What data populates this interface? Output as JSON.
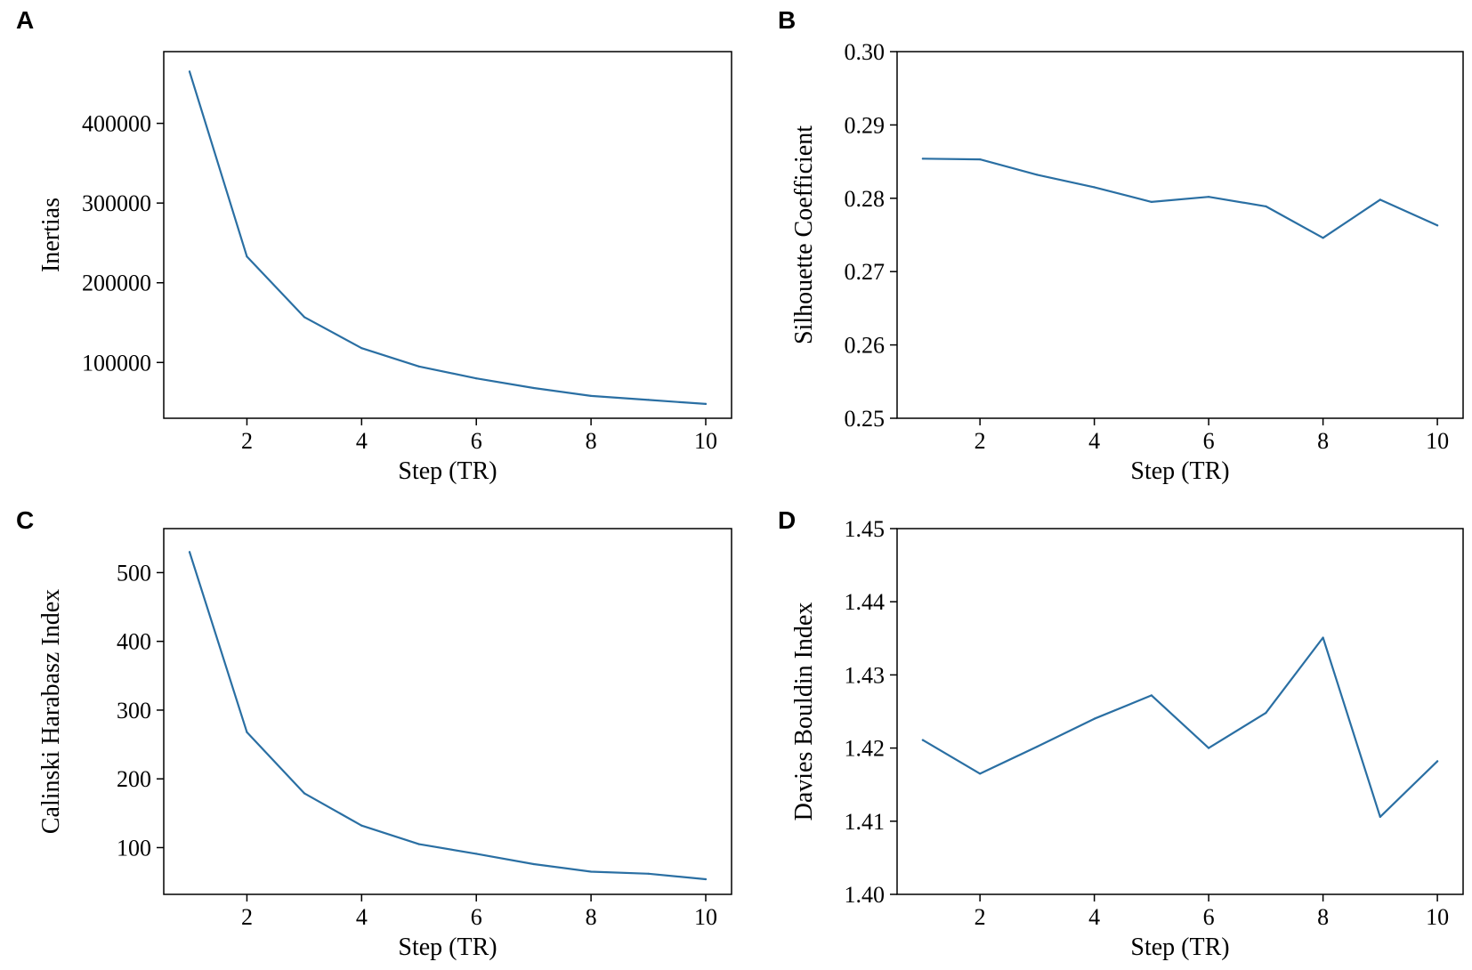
{
  "colors": {
    "series": "#2a6fa3",
    "axis": "#000000"
  },
  "chart_data": [
    {
      "panel": "A",
      "type": "line",
      "title": "",
      "xlabel": "Step (TR)",
      "ylabel": "Inertias",
      "xlim": [
        0.55,
        10.45
      ],
      "ylim": [
        30000,
        490000
      ],
      "xticks": [
        2,
        4,
        6,
        8,
        10
      ],
      "yticks": [
        100000,
        200000,
        300000,
        400000
      ],
      "xtick_labels": [
        "2",
        "4",
        "6",
        "8",
        "10"
      ],
      "ytick_labels": [
        "100000",
        "200000",
        "300000",
        "400000"
      ],
      "grid": false,
      "series": [
        {
          "name": "Inertias",
          "x": [
            1,
            2,
            3,
            4,
            5,
            6,
            7,
            8,
            9,
            10
          ],
          "values": [
            465000,
            233000,
            157000,
            118000,
            95000,
            80000,
            68000,
            58000,
            53000,
            48000
          ]
        }
      ]
    },
    {
      "panel": "B",
      "type": "line",
      "title": "",
      "xlabel": "Step (TR)",
      "ylabel": "Silhouette Coefficient",
      "xlim": [
        0.55,
        10.45
      ],
      "ylim": [
        0.25,
        0.3
      ],
      "xticks": [
        2,
        4,
        6,
        8,
        10
      ],
      "yticks": [
        0.25,
        0.26,
        0.27,
        0.28,
        0.29,
        0.3
      ],
      "xtick_labels": [
        "2",
        "4",
        "6",
        "8",
        "10"
      ],
      "ytick_labels": [
        "0.25",
        "0.26",
        "0.27",
        "0.28",
        "0.29",
        "0.30"
      ],
      "grid": false,
      "series": [
        {
          "name": "Silhouette Coefficient",
          "x": [
            1,
            2,
            3,
            4,
            5,
            6,
            7,
            8,
            9,
            10
          ],
          "values": [
            0.2854,
            0.2853,
            0.2832,
            0.2815,
            0.2795,
            0.2802,
            0.2789,
            0.2746,
            0.2798,
            0.2763
          ]
        }
      ]
    },
    {
      "panel": "C",
      "type": "line",
      "title": "",
      "xlabel": "Step (TR)",
      "ylabel": "Calinski Harabasz Index",
      "xlim": [
        0.55,
        10.45
      ],
      "ylim": [
        32,
        564
      ],
      "xticks": [
        2,
        4,
        6,
        8,
        10
      ],
      "yticks": [
        100,
        200,
        300,
        400,
        500
      ],
      "xtick_labels": [
        "2",
        "4",
        "6",
        "8",
        "10"
      ],
      "ytick_labels": [
        "100",
        "200",
        "300",
        "400",
        "500"
      ],
      "grid": false,
      "series": [
        {
          "name": "Calinski Harabasz Index",
          "x": [
            1,
            2,
            3,
            4,
            5,
            6,
            7,
            8,
            9,
            10
          ],
          "values": [
            530,
            268,
            179,
            132,
            105,
            91,
            76,
            65,
            62,
            54
          ]
        }
      ]
    },
    {
      "panel": "D",
      "type": "line",
      "title": "",
      "xlabel": "Step (TR)",
      "ylabel": "Davies Bouldin Index",
      "xlim": [
        0.55,
        10.45
      ],
      "ylim": [
        1.4,
        1.45
      ],
      "xticks": [
        2,
        4,
        6,
        8,
        10
      ],
      "yticks": [
        1.4,
        1.41,
        1.42,
        1.43,
        1.44,
        1.45
      ],
      "xtick_labels": [
        "2",
        "4",
        "6",
        "8",
        "10"
      ],
      "ytick_labels": [
        "1.40",
        "1.41",
        "1.42",
        "1.43",
        "1.44",
        "1.45"
      ],
      "grid": false,
      "series": [
        {
          "name": "Davies Bouldin Index",
          "x": [
            1,
            2,
            3,
            4,
            5,
            6,
            7,
            8,
            9,
            10
          ],
          "values": [
            1.4211,
            1.4165,
            1.4202,
            1.424,
            1.4272,
            1.42,
            1.4248,
            1.4351,
            1.4106,
            1.4182
          ]
        }
      ]
    }
  ]
}
